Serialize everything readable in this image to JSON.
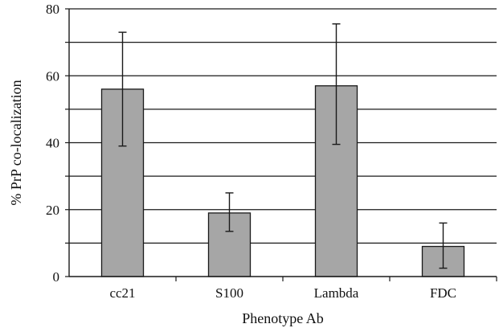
{
  "chart_data": {
    "type": "bar",
    "title": "",
    "xlabel": "Phenotype Ab",
    "ylabel": "% PrP co-localization",
    "categories": [
      "cc21",
      "S100",
      "Lambda",
      "FDC"
    ],
    "values": [
      56,
      19,
      57,
      9
    ],
    "error_low": [
      39,
      13.5,
      39.5,
      2.5
    ],
    "error_high": [
      73,
      25,
      75.5,
      16
    ],
    "ylim": [
      0,
      80
    ],
    "y_ticks": [
      0,
      20,
      40,
      60,
      80
    ],
    "y_tick_labels": [
      "0",
      "20",
      "40",
      "60",
      "80"
    ],
    "grid_values": [
      10,
      20,
      30,
      40,
      50,
      60,
      70,
      80
    ],
    "grid": true,
    "legend": "none",
    "bar_color": "#a6a6a6",
    "line_color": "#1a1a1a"
  }
}
